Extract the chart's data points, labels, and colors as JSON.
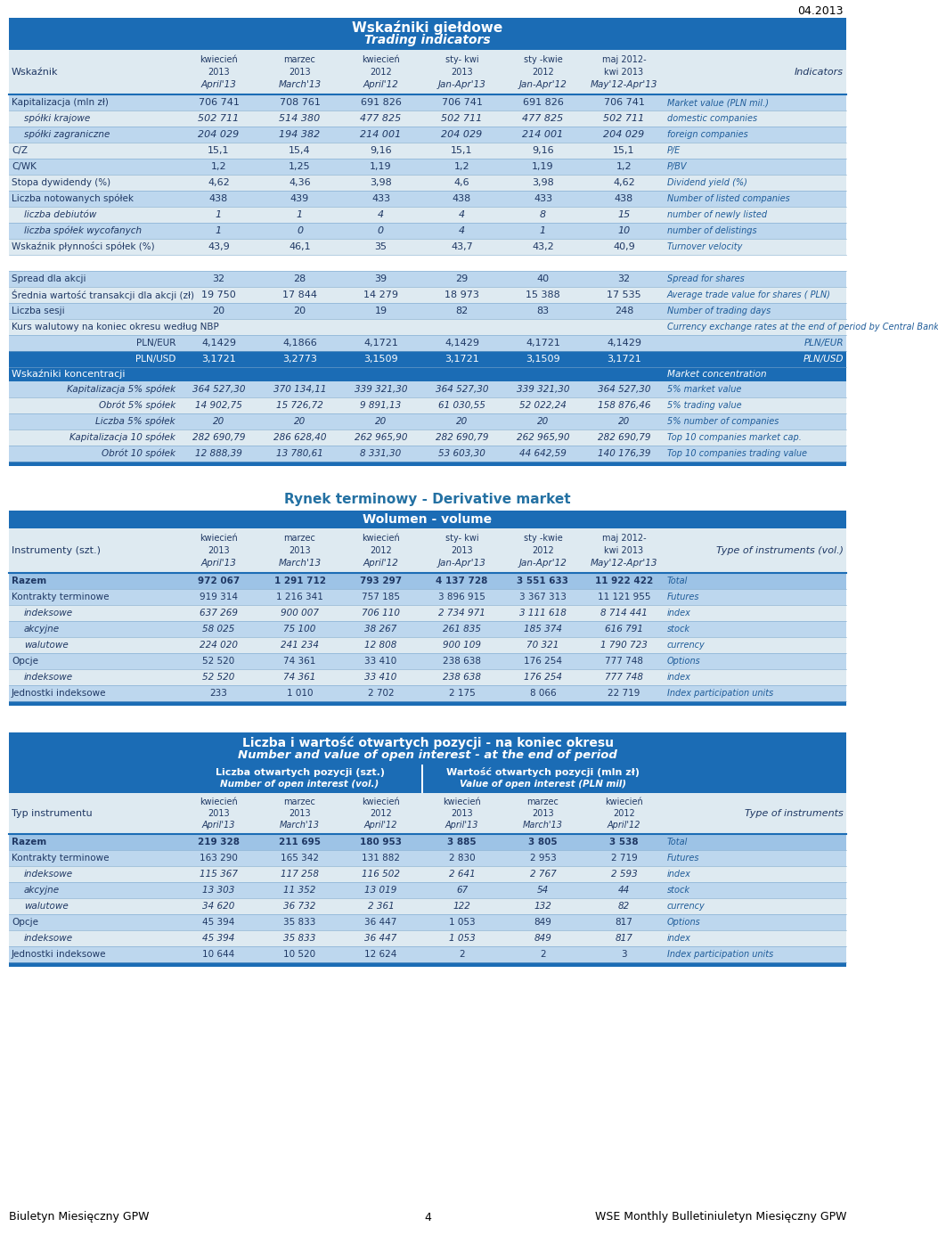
{
  "date_stamp": "04.2013",
  "table1_title_pl": "Wskaźniki giełdowe",
  "table1_title_en": "Trading indicators",
  "col_headers_line1": [
    "kwiecień",
    "marzec",
    "kwiecień",
    "sty- kwi",
    "sty -kwie",
    "maj 2012-"
  ],
  "col_headers_line2": [
    "2013",
    "2013",
    "2012",
    "2013",
    "2012",
    "kwi 2013"
  ],
  "col_headers_line3": [
    "April'13",
    "March'13",
    "April'12",
    "Jan-Apr'13",
    "Jan-Apr'12",
    "May'12-Apr'13"
  ],
  "table1_label_header": "Wskaźnik",
  "table1_right_header": "Indicators",
  "table1_rows": [
    {
      "label": "Kapitalizacja (mln zł)",
      "values": [
        "706 741",
        "708 761",
        "691 826",
        "706 741",
        "691 826",
        "706 741"
      ],
      "right": "Market value (PLN mil.)",
      "bold": false,
      "italic": false,
      "indent": 0,
      "bg": "light1"
    },
    {
      "label": "spółki krajowe",
      "values": [
        "502 711",
        "514 380",
        "477 825",
        "502 711",
        "477 825",
        "502 711"
      ],
      "right": "domestic companies",
      "bold": false,
      "italic": true,
      "indent": 1,
      "bg": "light2"
    },
    {
      "label": "spółki zagraniczne",
      "values": [
        "204 029",
        "194 382",
        "214 001",
        "204 029",
        "214 001",
        "204 029"
      ],
      "right": "foreign companies",
      "bold": false,
      "italic": true,
      "indent": 1,
      "bg": "light1"
    },
    {
      "label": "C/Z",
      "values": [
        "15,1",
        "15,4",
        "9,16",
        "15,1",
        "9,16",
        "15,1"
      ],
      "right": "P/E",
      "bold": false,
      "italic": false,
      "indent": 0,
      "bg": "light2"
    },
    {
      "label": "C/WK",
      "values": [
        "1,2",
        "1,25",
        "1,19",
        "1,2",
        "1,19",
        "1,2"
      ],
      "right": "P/BV",
      "bold": false,
      "italic": false,
      "indent": 0,
      "bg": "light1"
    },
    {
      "label": "Stopa dywidendy (%)",
      "values": [
        "4,62",
        "4,36",
        "3,98",
        "4,6",
        "3,98",
        "4,62"
      ],
      "right": "Dividend yield (%)",
      "bold": false,
      "italic": false,
      "indent": 0,
      "bg": "light2"
    },
    {
      "label": "Liczba notowanych spółek",
      "values": [
        "438",
        "439",
        "433",
        "438",
        "433",
        "438"
      ],
      "right": "Number of listed companies",
      "bold": false,
      "italic": false,
      "indent": 0,
      "bg": "light1"
    },
    {
      "label": "liczba debiutów",
      "values": [
        "1",
        "1",
        "4",
        "4",
        "8",
        "15"
      ],
      "right": "number of newly listed",
      "bold": false,
      "italic": true,
      "indent": 1,
      "bg": "light2"
    },
    {
      "label": "liczba spółek wycofanych",
      "values": [
        "1",
        "0",
        "0",
        "4",
        "1",
        "10"
      ],
      "right": "number of delistings",
      "bold": false,
      "italic": true,
      "indent": 1,
      "bg": "light1"
    },
    {
      "label": "Wskaźnik płynności spółek (%)",
      "values": [
        "43,9",
        "46,1",
        "35",
        "43,7",
        "43,2",
        "40,9"
      ],
      "right": "Turnover velocity",
      "bold": false,
      "italic": false,
      "indent": 0,
      "bg": "light2"
    },
    {
      "label": "",
      "values": [
        "",
        "",
        "",
        "",
        "",
        ""
      ],
      "right": "",
      "bold": false,
      "italic": false,
      "indent": 0,
      "bg": "white"
    },
    {
      "label": "Spread dla akcji",
      "values": [
        "32",
        "28",
        "39",
        "29",
        "40",
        "32"
      ],
      "right": "Spread for shares",
      "bold": false,
      "italic": false,
      "indent": 0,
      "bg": "light1"
    },
    {
      "label": "Średnia wartość transakcji dla akcji (zł)",
      "values": [
        "19 750",
        "17 844",
        "14 279",
        "18 973",
        "15 388",
        "17 535"
      ],
      "right": "Average trade value for shares ( PLN)",
      "bold": false,
      "italic": false,
      "indent": 0,
      "bg": "light2"
    },
    {
      "label": "Liczba sesji",
      "values": [
        "20",
        "20",
        "19",
        "82",
        "83",
        "248"
      ],
      "right": "Number of trading days",
      "bold": false,
      "italic": false,
      "indent": 0,
      "bg": "light1"
    },
    {
      "label": "Kurs walutowy na koniec okresu według NBP",
      "values": [
        "",
        "",
        "",
        "",
        "",
        ""
      ],
      "right": "Currency exchange rates at the end of period by Central Bank",
      "bold": false,
      "italic": false,
      "indent": 0,
      "bg": "light2"
    },
    {
      "label": "PLN/EUR",
      "values": [
        "4,1429",
        "4,1866",
        "4,1721",
        "4,1429",
        "4,1721",
        "4,1429"
      ],
      "right": "PLN/EUR",
      "bold": false,
      "italic": false,
      "indent": 0,
      "bg": "light1",
      "right_align_label": true
    },
    {
      "label": "PLN/USD",
      "values": [
        "3,1721",
        "3,2773",
        "3,1509",
        "3,1721",
        "3,1509",
        "3,1721"
      ],
      "right": "PLN/USD",
      "bold": false,
      "italic": false,
      "indent": 0,
      "bg": "dark",
      "right_align_label": true
    }
  ],
  "sec2_title": "Wskaźniki koncentracji",
  "sec2_title_en": "Market concentration",
  "sec2_rows": [
    {
      "label": "Kapitalizacja 5% spółek",
      "values": [
        "364 527,30",
        "370 134,11",
        "339 321,30",
        "364 527,30",
        "339 321,30",
        "364 527,30"
      ],
      "right": "5% market value"
    },
    {
      "label": "Obrót 5% spółek",
      "values": [
        "14 902,75",
        "15 726,72",
        "9 891,13",
        "61 030,55",
        "52 022,24",
        "158 876,46"
      ],
      "right": "5% trading value"
    },
    {
      "label": "Liczba 5% spółek",
      "values": [
        "20",
        "20",
        "20",
        "20",
        "20",
        "20"
      ],
      "right": "5% number of companies"
    },
    {
      "label": "Kapitalizacja 10 spółek",
      "values": [
        "282 690,79",
        "286 628,40",
        "262 965,90",
        "282 690,79",
        "262 965,90",
        "282 690,79"
      ],
      "right": "Top 10 companies market cap."
    },
    {
      "label": "Obrót 10 spółek",
      "values": [
        "12 888,39",
        "13 780,61",
        "8 331,30",
        "53 603,30",
        "44 642,59",
        "140 176,39"
      ],
      "right": "Top 10 companies trading value"
    }
  ],
  "table2_title": "Rynek terminowy - Derivative market",
  "table2_subtitle": "Wolumen - volume",
  "table2_label_header": "Instrumenty (szt.)",
  "table2_right_header": "Type of instruments (vol.)",
  "table2_col_headers_line1": [
    "kwiecień",
    "marzec",
    "kwiecień",
    "sty- kwi",
    "sty -kwie",
    "maj 2012-"
  ],
  "table2_col_headers_line2": [
    "2013",
    "2013",
    "2012",
    "2013",
    "2012",
    "kwi 2013"
  ],
  "table2_col_headers_line3": [
    "April'13",
    "March'13",
    "April'12",
    "Jan-Apr'13",
    "Jan-Apr'12",
    "May'12-Apr'13"
  ],
  "table2_rows": [
    {
      "label": "Razem",
      "values": [
        "972 067",
        "1 291 712",
        "793 297",
        "4 137 728",
        "3 551 633",
        "11 922 422"
      ],
      "right": "Total",
      "bold": true,
      "italic": false,
      "indent": 0
    },
    {
      "label": "Kontrakty terminowe",
      "values": [
        "919 314",
        "1 216 341",
        "757 185",
        "3 896 915",
        "3 367 313",
        "11 121 955"
      ],
      "right": "Futures",
      "bold": false,
      "italic": false,
      "indent": 0
    },
    {
      "label": "indeksowe",
      "values": [
        "637 269",
        "900 007",
        "706 110",
        "2 734 971",
        "3 111 618",
        "8 714 441"
      ],
      "right": "index",
      "bold": false,
      "italic": true,
      "indent": 1
    },
    {
      "label": "akcyjne",
      "values": [
        "58 025",
        "75 100",
        "38 267",
        "261 835",
        "185 374",
        "616 791"
      ],
      "right": "stock",
      "bold": false,
      "italic": true,
      "indent": 1
    },
    {
      "label": "walutowe",
      "values": [
        "224 020",
        "241 234",
        "12 808",
        "900 109",
        "70 321",
        "1 790 723"
      ],
      "right": "currency",
      "bold": false,
      "italic": true,
      "indent": 1
    },
    {
      "label": "Opcje",
      "values": [
        "52 520",
        "74 361",
        "33 410",
        "238 638",
        "176 254",
        "777 748"
      ],
      "right": "Options",
      "bold": false,
      "italic": false,
      "indent": 0
    },
    {
      "label": "indeksowe",
      "values": [
        "52 520",
        "74 361",
        "33 410",
        "238 638",
        "176 254",
        "777 748"
      ],
      "right": "index",
      "bold": false,
      "italic": true,
      "indent": 1
    },
    {
      "label": "Jednostki indeksowe",
      "values": [
        "233",
        "1 010",
        "2 702",
        "2 175",
        "8 066",
        "22 719"
      ],
      "right": "Index participation units",
      "bold": false,
      "italic": false,
      "indent": 0
    }
  ],
  "table3_title_pl": "Liczba i wartość otwartych pozycji - na koniec okresu",
  "table3_title_en": "Number and value of open interest - at the end of period",
  "table3_subh1_pl": "Liczba otwartych pozycji (szt.)",
  "table3_subh1_en": "Number of open interest (vol.)",
  "table3_subh2_pl": "Wartość otwartych pozycji (mln zł)",
  "table3_subh2_en": "Value of open interest (PLN mil)",
  "table3_label_header": "Typ instrumentu",
  "table3_right_header": "Type of instruments",
  "table3_col_h1": [
    "kwiecień",
    "marzec",
    "kwiecień"
  ],
  "table3_col_h2": [
    "2013",
    "2013",
    "2012"
  ],
  "table3_col_h3": [
    "April'13",
    "March'13",
    "April'12"
  ],
  "table3_rows": [
    {
      "label": "Razem",
      "vol": [
        "219 328",
        "211 695",
        "180 953"
      ],
      "val": [
        "3 885",
        "3 805",
        "3 538"
      ],
      "right": "Total",
      "bold": true,
      "italic": false
    },
    {
      "label": "Kontrakty terminowe",
      "vol": [
        "163 290",
        "165 342",
        "131 882"
      ],
      "val": [
        "2 830",
        "2 953",
        "2 719"
      ],
      "right": "Futures",
      "bold": false,
      "italic": false
    },
    {
      "label": "indeksowe",
      "vol": [
        "115 367",
        "117 258",
        "116 502"
      ],
      "val": [
        "2 641",
        "2 767",
        "2 593"
      ],
      "right": "index",
      "bold": false,
      "italic": true
    },
    {
      "label": "akcyjne",
      "vol": [
        "13 303",
        "11 352",
        "13 019"
      ],
      "val": [
        "67",
        "54",
        "44"
      ],
      "right": "stock",
      "bold": false,
      "italic": true
    },
    {
      "label": "walutowe",
      "vol": [
        "34 620",
        "36 732",
        "2 361"
      ],
      "val": [
        "122",
        "132",
        "82"
      ],
      "right": "currency",
      "bold": false,
      "italic": true
    },
    {
      "label": "Opcje",
      "vol": [
        "45 394",
        "35 833",
        "36 447"
      ],
      "val": [
        "1 053",
        "849",
        "817"
      ],
      "right": "Options",
      "bold": false,
      "italic": false
    },
    {
      "label": "indeksowe",
      "vol": [
        "45 394",
        "35 833",
        "36 447"
      ],
      "val": [
        "1 053",
        "849",
        "817"
      ],
      "right": "index",
      "bold": false,
      "italic": true
    },
    {
      "label": "Jednostki indeksowe",
      "vol": [
        "10 644",
        "10 520",
        "12 624"
      ],
      "val": [
        "2",
        "2",
        "3"
      ],
      "right": "Index participation units",
      "bold": false,
      "italic": false
    }
  ],
  "footer_left": "Biuletyn Miesięczny GPW",
  "footer_center": "4",
  "footer_right": "WSE Monthly Bulletiniuletyn Miesięczny GPW",
  "DARK_BLUE": "#1B6CB5",
  "MED_BLUE": "#2471A3",
  "LIGHT_BLUE1": "#BDD7EE",
  "LIGHT_BLUE2": "#DEEAF1",
  "LIGHT_BLUE3": "#9DC3E6",
  "TEXT_DARK": "#1F3864",
  "TEXT_BLUE": "#1F5C99"
}
